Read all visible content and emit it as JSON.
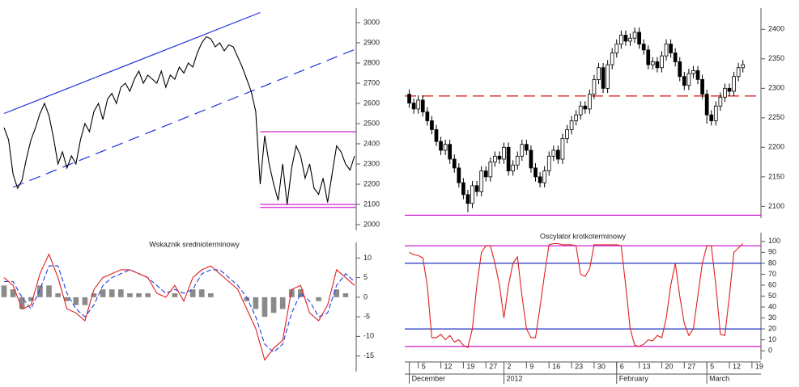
{
  "chart_data": [
    {
      "type": "line",
      "values": [
        2480,
        2420,
        2250,
        2180,
        2220,
        2330,
        2420,
        2480,
        2550,
        2600,
        2540,
        2430,
        2300,
        2360,
        2280,
        2340,
        2300,
        2420,
        2500,
        2460,
        2560,
        2600,
        2520,
        2620,
        2650,
        2600,
        2680,
        2700,
        2660,
        2720,
        2760,
        2700,
        2740,
        2720,
        2700,
        2760,
        2680,
        2740,
        2720,
        2780,
        2750,
        2800,
        2780,
        2850,
        2900,
        2930,
        2920,
        2880,
        2900,
        2860,
        2890,
        2880,
        2830,
        2780,
        2720,
        2660,
        2560,
        2200,
        2440,
        2300,
        2200,
        2120,
        2300,
        2100,
        2280,
        2390,
        2340,
        2230,
        2300,
        2180,
        2150,
        2230,
        2110,
        2250,
        2390,
        2360,
        2300,
        2270,
        2340
      ],
      "color": "#000000",
      "xlim": [
        0,
        78
      ],
      "ylim": [
        1972,
        3072
      ],
      "yticks": [
        2000,
        2100,
        2200,
        2300,
        2400,
        2500,
        2600,
        2700,
        2800,
        2900,
        3000
      ],
      "lines": [
        {
          "x": [
            0,
            57
          ],
          "y": [
            2550,
            3050
          ],
          "color": "#2030e0",
          "dash": false
        },
        {
          "x": [
            2,
            80
          ],
          "y": [
            2185,
            2870
          ],
          "color": "#2030e0",
          "dash": true
        }
      ],
      "hlines": [
        {
          "value": 2460,
          "xrange": [
            57,
            80
          ],
          "color": "#d020d0"
        },
        {
          "value": 2100,
          "xrange": [
            57,
            80
          ],
          "color": "#d020d0"
        },
        {
          "value": 2085,
          "xrange": [
            57,
            80
          ],
          "color": "#d020d0"
        }
      ]
    },
    {
      "type": "line",
      "title": "Wskaznik srednioterminowy",
      "xlim": [
        0,
        39
      ],
      "ylim": [
        -19,
        14
      ],
      "yticks": [
        10,
        5,
        0,
        -5,
        -10,
        -15
      ],
      "series": [
        {
          "type": "bar",
          "color": "#8a8a8a",
          "values": [
            3,
            2,
            -3,
            -1,
            3,
            3,
            1,
            -1,
            -2,
            -2,
            1,
            2,
            2,
            2,
            1,
            1,
            1,
            0,
            0,
            1,
            0,
            2,
            2,
            1,
            0,
            0,
            0,
            -1,
            -3,
            -5,
            -4,
            -3,
            2,
            2,
            0,
            -1,
            0,
            2,
            1,
            0
          ]
        },
        {
          "type": "line",
          "color": "#2040e0",
          "dash": true,
          "values": [
            4,
            4,
            0,
            -3,
            2,
            8,
            8,
            1,
            -3,
            -5,
            -2,
            3,
            5,
            6,
            7,
            6,
            5,
            3,
            1,
            2,
            1,
            2,
            6,
            7,
            7,
            5,
            3,
            0,
            -5,
            -12,
            -14,
            -12,
            -4,
            1,
            -1,
            -5,
            -4,
            3,
            6,
            4
          ]
        },
        {
          "type": "line",
          "color": "#e02020",
          "dash": false,
          "values": [
            5,
            3,
            -3,
            -2,
            6,
            11,
            5,
            -3,
            -4,
            -6,
            2,
            5,
            6,
            7,
            7,
            6,
            5,
            1,
            0,
            3,
            -1,
            5,
            7,
            8,
            6,
            4,
            2,
            -3,
            -8,
            -16,
            -13,
            -11,
            2,
            3,
            -4,
            -6,
            -2,
            7,
            5,
            3
          ]
        }
      ]
    },
    {
      "type": "candlestick",
      "xlim": [
        -1,
        78
      ],
      "ylim": [
        2080,
        2436
      ],
      "yticks": [
        2100,
        2150,
        2200,
        2250,
        2300,
        2350,
        2400
      ],
      "open": [
        2290,
        2275,
        2265,
        2280,
        2260,
        2245,
        2230,
        2210,
        2195,
        2205,
        2180,
        2165,
        2140,
        2120,
        2105,
        2135,
        2125,
        2160,
        2150,
        2175,
        2185,
        2180,
        2200,
        2160,
        2170,
        2185,
        2205,
        2195,
        2165,
        2150,
        2140,
        2160,
        2185,
        2195,
        2180,
        2215,
        2230,
        2245,
        2255,
        2270,
        2265,
        2290,
        2315,
        2335,
        2300,
        2340,
        2360,
        2375,
        2390,
        2380,
        2385,
        2395,
        2375,
        2365,
        2340,
        2345,
        2335,
        2355,
        2375,
        2360,
        2345,
        2320,
        2305,
        2325,
        2330,
        2315,
        2290,
        2255,
        2245,
        2270,
        2285,
        2300,
        2295,
        2320,
        2335
      ],
      "high": [
        2298,
        2283,
        2288,
        2288,
        2268,
        2253,
        2238,
        2218,
        2213,
        2213,
        2188,
        2173,
        2148,
        2128,
        2143,
        2143,
        2168,
        2168,
        2183,
        2193,
        2193,
        2208,
        2208,
        2178,
        2193,
        2213,
        2213,
        2203,
        2173,
        2158,
        2168,
        2193,
        2203,
        2203,
        2223,
        2238,
        2253,
        2263,
        2278,
        2278,
        2298,
        2323,
        2343,
        2343,
        2348,
        2368,
        2383,
        2398,
        2398,
        2393,
        2403,
        2403,
        2383,
        2373,
        2353,
        2353,
        2363,
        2383,
        2383,
        2368,
        2353,
        2328,
        2333,
        2338,
        2338,
        2323,
        2298,
        2263,
        2278,
        2293,
        2308,
        2308,
        2328,
        2343,
        2348
      ],
      "low": [
        2267,
        2257,
        2257,
        2252,
        2237,
        2222,
        2202,
        2187,
        2187,
        2172,
        2157,
        2132,
        2112,
        2090,
        2097,
        2117,
        2117,
        2142,
        2142,
        2167,
        2172,
        2172,
        2152,
        2152,
        2162,
        2177,
        2187,
        2157,
        2142,
        2132,
        2132,
        2152,
        2177,
        2172,
        2172,
        2207,
        2222,
        2237,
        2247,
        2257,
        2257,
        2282,
        2307,
        2292,
        2292,
        2332,
        2352,
        2367,
        2372,
        2372,
        2377,
        2367,
        2357,
        2332,
        2332,
        2327,
        2327,
        2347,
        2352,
        2337,
        2312,
        2297,
        2297,
        2317,
        2307,
        2282,
        2240,
        2237,
        2237,
        2262,
        2277,
        2287,
        2287,
        2312,
        2327
      ],
      "close": [
        2275,
        2265,
        2280,
        2260,
        2245,
        2230,
        2210,
        2195,
        2205,
        2180,
        2165,
        2140,
        2120,
        2105,
        2135,
        2125,
        2160,
        2150,
        2175,
        2185,
        2180,
        2200,
        2160,
        2170,
        2185,
        2205,
        2195,
        2165,
        2150,
        2140,
        2160,
        2185,
        2195,
        2180,
        2215,
        2230,
        2245,
        2255,
        2270,
        2265,
        2290,
        2315,
        2335,
        2300,
        2340,
        2360,
        2375,
        2390,
        2380,
        2385,
        2395,
        2375,
        2365,
        2340,
        2345,
        2335,
        2355,
        2375,
        2360,
        2345,
        2320,
        2305,
        2325,
        2330,
        2315,
        2290,
        2255,
        2245,
        2270,
        2285,
        2300,
        2295,
        2320,
        2335,
        2340
      ],
      "hlines": [
        {
          "value": 2287,
          "color": "#e02020",
          "dash": true
        },
        {
          "value": 2085,
          "color": "#d020d0",
          "dash": false
        }
      ]
    },
    {
      "type": "line",
      "title": "Oscylator krotkoterminowy",
      "xlim": [
        -1,
        78
      ],
      "ylim": [
        -8,
        108
      ],
      "yticks": [
        0,
        10,
        20,
        30,
        40,
        50,
        60,
        70,
        80,
        90,
        100
      ],
      "values": [
        90,
        88,
        87,
        85,
        60,
        12,
        12,
        15,
        10,
        14,
        8,
        10,
        5,
        3,
        20,
        60,
        90,
        96,
        96,
        80,
        60,
        30,
        60,
        80,
        86,
        50,
        20,
        12,
        12,
        40,
        70,
        97,
        98,
        98,
        97,
        97,
        97,
        96,
        70,
        68,
        75,
        97,
        97,
        97,
        97,
        97,
        97,
        96,
        60,
        20,
        5,
        4,
        6,
        10,
        9,
        14,
        12,
        30,
        60,
        80,
        50,
        25,
        14,
        20,
        50,
        80,
        96,
        96,
        60,
        15,
        14,
        50,
        90,
        94,
        98
      ],
      "color": "#e02020",
      "hlines": [
        {
          "value": 96,
          "color": "#d020d0"
        },
        {
          "value": 80,
          "color": "#2030c0"
        },
        {
          "value": 20,
          "color": "#2030c0"
        },
        {
          "value": 4,
          "color": "#d020d0"
        }
      ],
      "xticks": [
        {
          "value": 2,
          "label": "5"
        },
        {
          "value": 7,
          "label": "12"
        },
        {
          "value": 12,
          "label": "19"
        },
        {
          "value": 17,
          "label": "27"
        },
        {
          "value": 21,
          "label": "2"
        },
        {
          "value": 26,
          "label": "9"
        },
        {
          "value": 31,
          "label": "16"
        },
        {
          "value": 36,
          "label": "23"
        },
        {
          "value": 41,
          "label": "30"
        },
        {
          "value": 46,
          "label": "6"
        },
        {
          "value": 51,
          "label": "13"
        },
        {
          "value": 56,
          "label": "20"
        },
        {
          "value": 61,
          "label": "27"
        },
        {
          "value": 66,
          "label": "5"
        },
        {
          "value": 71,
          "label": "12"
        },
        {
          "value": 76,
          "label": "19"
        }
      ],
      "month_labels": [
        {
          "value": 0,
          "label": "December"
        },
        {
          "value": 21,
          "label": "2012"
        },
        {
          "value": 46,
          "label": "February"
        },
        {
          "value": 66,
          "label": "March"
        }
      ]
    }
  ]
}
